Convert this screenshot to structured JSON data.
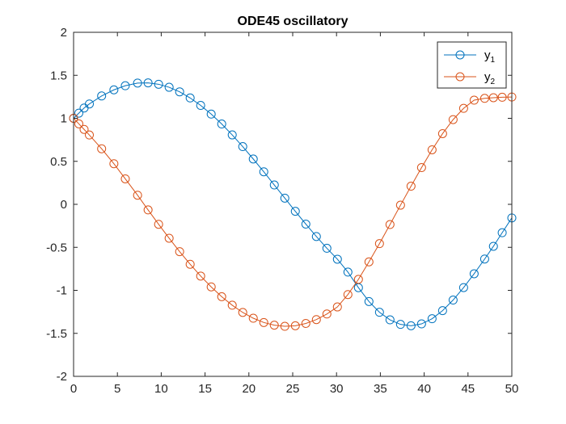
{
  "chart_data": {
    "type": "line",
    "title": "ODE45 oscillatory",
    "xlabel": "",
    "ylabel": "",
    "xlim": [
      0,
      50
    ],
    "ylim": [
      -2,
      2
    ],
    "x_ticks": [
      0,
      5,
      10,
      15,
      20,
      25,
      30,
      35,
      40,
      45,
      50
    ],
    "y_ticks": [
      -2,
      -1.5,
      -1,
      -0.5,
      0,
      0.5,
      1,
      1.5,
      2
    ],
    "x_tick_labels": [
      "0",
      "5",
      "10",
      "15",
      "20",
      "25",
      "30",
      "35",
      "40",
      "45",
      "50"
    ],
    "y_tick_labels": [
      "-2",
      "-1.5",
      "-1",
      "-0.5",
      "0",
      "0.5",
      "1",
      "1.5",
      "2"
    ],
    "grid": false,
    "legend_position": "top-right",
    "marker": "circle",
    "x": [
      0,
      0.6,
      1.2,
      1.8,
      3.2,
      4.6,
      5.9,
      7.3,
      8.5,
      9.7,
      10.9,
      12.1,
      13.3,
      14.5,
      15.7,
      16.9,
      18.1,
      19.3,
      20.5,
      21.7,
      22.9,
      24.1,
      25.3,
      26.5,
      27.7,
      28.9,
      30.1,
      31.3,
      32.5,
      33.7,
      34.9,
      36.1,
      37.3,
      38.5,
      39.7,
      40.9,
      42.1,
      43.3,
      44.5,
      45.7,
      46.9,
      47.9,
      48.9,
      50
    ],
    "series": [
      {
        "name": "y_1",
        "label_base": "y",
        "label_sub": "1",
        "color": "#0072BD",
        "values": [
          1.0,
          1.06,
          1.12,
          1.167,
          1.26,
          1.331,
          1.379,
          1.41,
          1.412,
          1.396,
          1.361,
          1.308,
          1.237,
          1.15,
          1.049,
          0.934,
          0.807,
          0.671,
          0.527,
          0.378,
          0.225,
          0.072,
          -0.081,
          -0.23,
          -0.374,
          -0.511,
          -0.638,
          -0.788,
          -0.969,
          -1.13,
          -1.255,
          -1.343,
          -1.396,
          -1.412,
          -1.39,
          -1.33,
          -1.236,
          -1.113,
          -0.968,
          -0.807,
          -0.636,
          -0.488,
          -0.33,
          -0.158
        ]
      },
      {
        "name": "y_2",
        "label_base": "y",
        "label_sub": "2",
        "color": "#D95319",
        "values": [
          1.0,
          0.936,
          0.871,
          0.806,
          0.646,
          0.472,
          0.296,
          0.106,
          -0.065,
          -0.232,
          -0.394,
          -0.55,
          -0.697,
          -0.834,
          -0.96,
          -1.074,
          -1.173,
          -1.257,
          -1.324,
          -1.374,
          -1.405,
          -1.418,
          -1.412,
          -1.385,
          -1.34,
          -1.275,
          -1.193,
          -1.049,
          -0.872,
          -0.669,
          -0.457,
          -0.235,
          -0.01,
          0.211,
          0.427,
          0.634,
          0.822,
          0.985,
          1.116,
          1.211,
          1.232,
          1.24,
          1.245,
          1.248
        ]
      }
    ]
  }
}
